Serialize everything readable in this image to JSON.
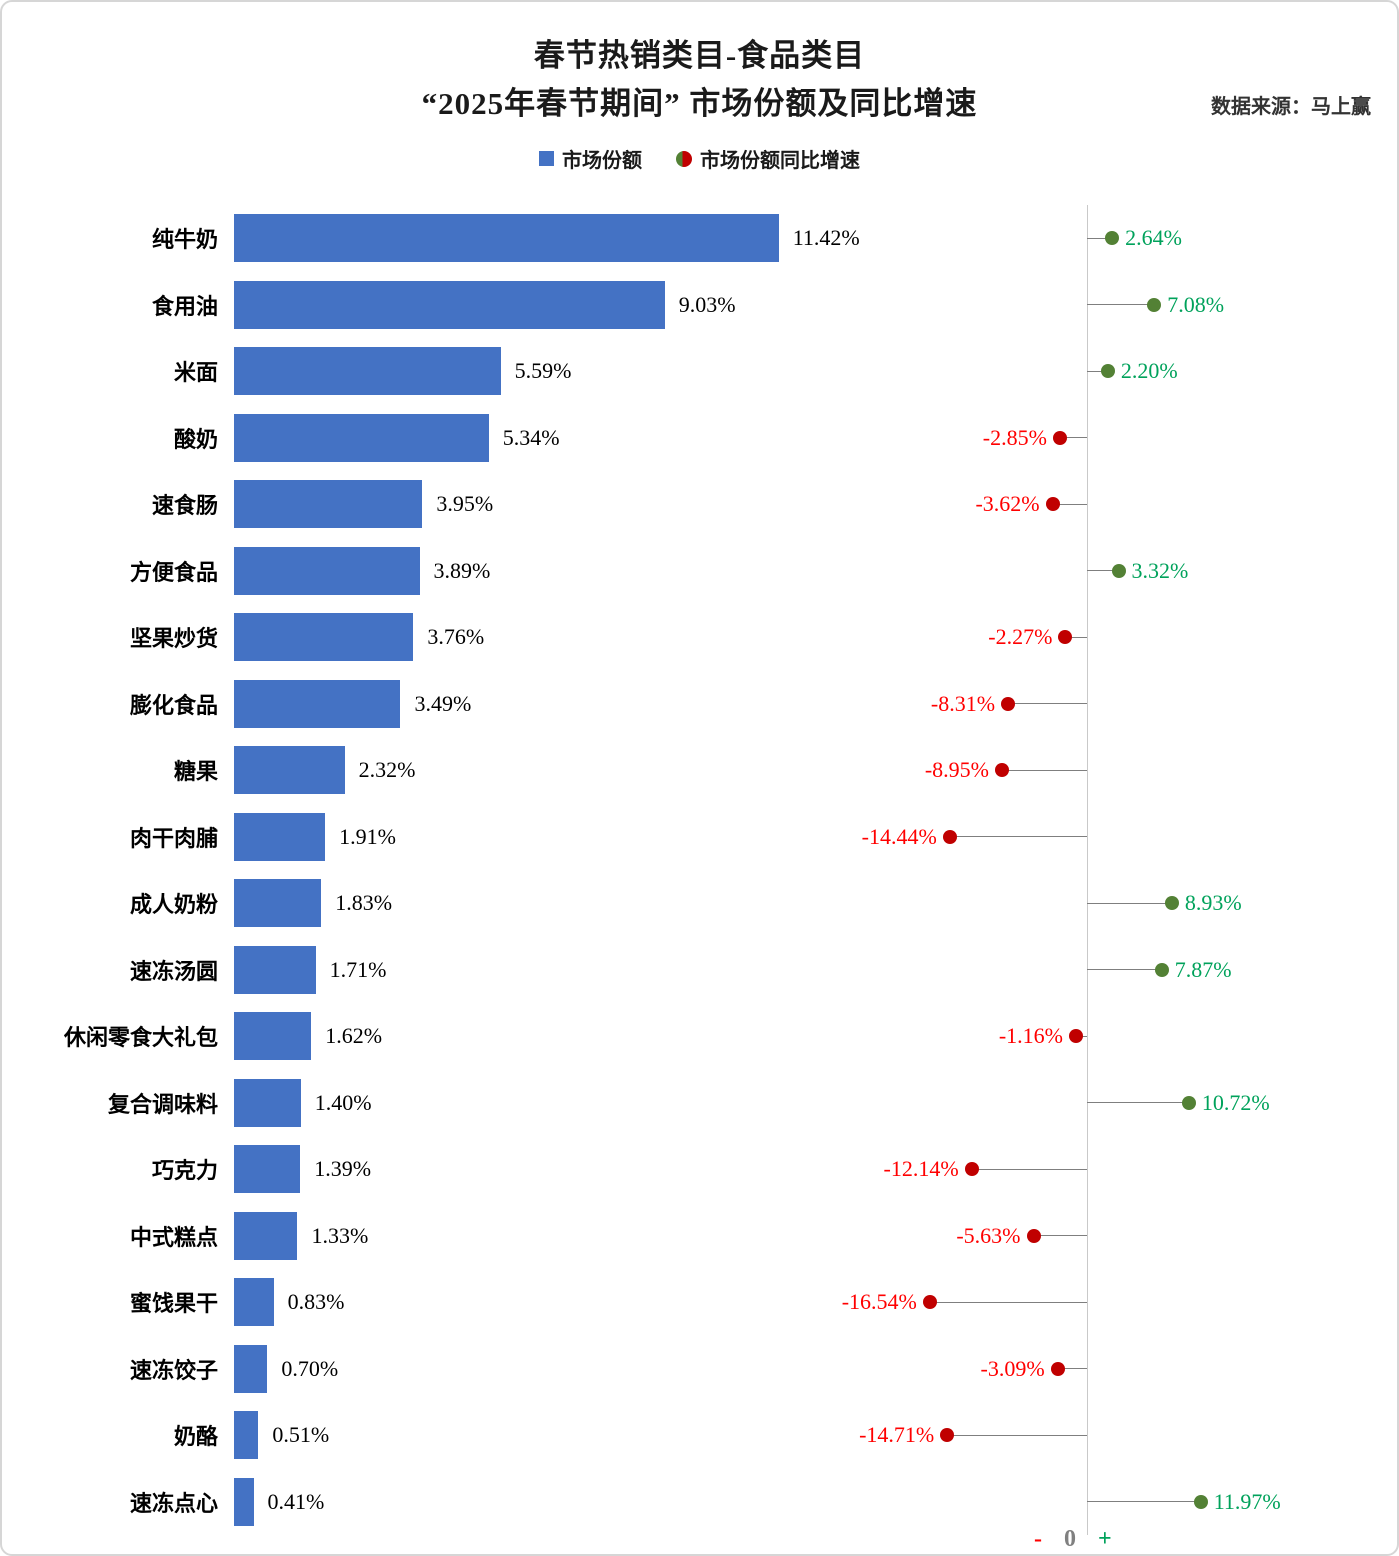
{
  "title": "春节热销类目-食品类目",
  "subtitle": "“2025年春节期间” 市场份额及同比增速",
  "source": "数据来源：马上赢",
  "legend": {
    "share_label": "市场份额",
    "growth_label": "市场份额同比增速"
  },
  "axis_markers": {
    "minus": "-",
    "zero": "0",
    "plus": "+"
  },
  "colors": {
    "bar": "#4472C4",
    "positive_text": "#00A25B",
    "positive_dot": "#538135",
    "negative_text": "#FF0000",
    "negative_dot": "#C00000"
  },
  "chart_data": {
    "type": "bar",
    "orientation": "horizontal",
    "title": "春节热销类目-食品类目",
    "subtitle": "“2025年春节期间” 市场份额及同比增速",
    "source": "数据来源：马上赢",
    "legend_position": "top",
    "grid": false,
    "categories": [
      "纯牛奶",
      "食用油",
      "米面",
      "酸奶",
      "速食肠",
      "方便食品",
      "坚果炒货",
      "膨化食品",
      "糖果",
      "肉干肉脯",
      "成人奶粉",
      "速冻汤圆",
      "休闲零食大礼包",
      "复合调味料",
      "巧克力",
      "中式糕点",
      "蜜饯果干",
      "速冻饺子",
      "奶酪",
      "速冻点心"
    ],
    "series": [
      {
        "name": "市场份额",
        "unit": "%",
        "type": "bar",
        "values": [
          11.42,
          9.03,
          5.59,
          5.34,
          3.95,
          3.89,
          3.76,
          3.49,
          2.32,
          1.91,
          1.83,
          1.71,
          1.62,
          1.4,
          1.39,
          1.33,
          0.83,
          0.7,
          0.51,
          0.41
        ]
      },
      {
        "name": "市场份额同比增速",
        "unit": "%",
        "type": "lollipop",
        "values": [
          2.64,
          7.08,
          2.2,
          -2.85,
          -3.62,
          3.32,
          -2.27,
          -8.31,
          -8.95,
          -14.44,
          8.93,
          7.87,
          -1.16,
          10.72,
          -12.14,
          -5.63,
          -16.54,
          -3.09,
          -14.71,
          11.97
        ]
      }
    ],
    "share_axis_range": [
      0,
      12
    ],
    "growth_axis_markers": [
      "-",
      "0",
      "+"
    ]
  }
}
